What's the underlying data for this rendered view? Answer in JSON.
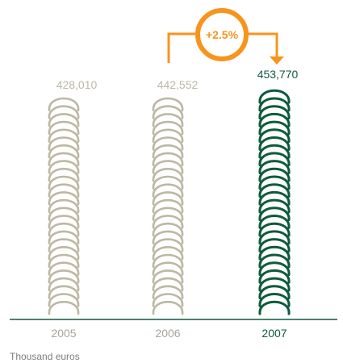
{
  "chart_data": {
    "type": "bar",
    "categories": [
      "2005",
      "2006",
      "2007"
    ],
    "values": [
      428010,
      442552,
      453770
    ],
    "value_labels": [
      "428,010",
      "442,552",
      "453,770"
    ],
    "unit_note": "Thousand euros",
    "growth_label": "+2.5%",
    "growth_from": "2006",
    "growth_to": "2007",
    "colors": {
      "past": "#bcb8a4",
      "current": "#0f5a3c",
      "growth": "#f7941d",
      "baseline": "#0f5a3c",
      "note": "#7d7d7d"
    },
    "highlight_category": "2007"
  }
}
